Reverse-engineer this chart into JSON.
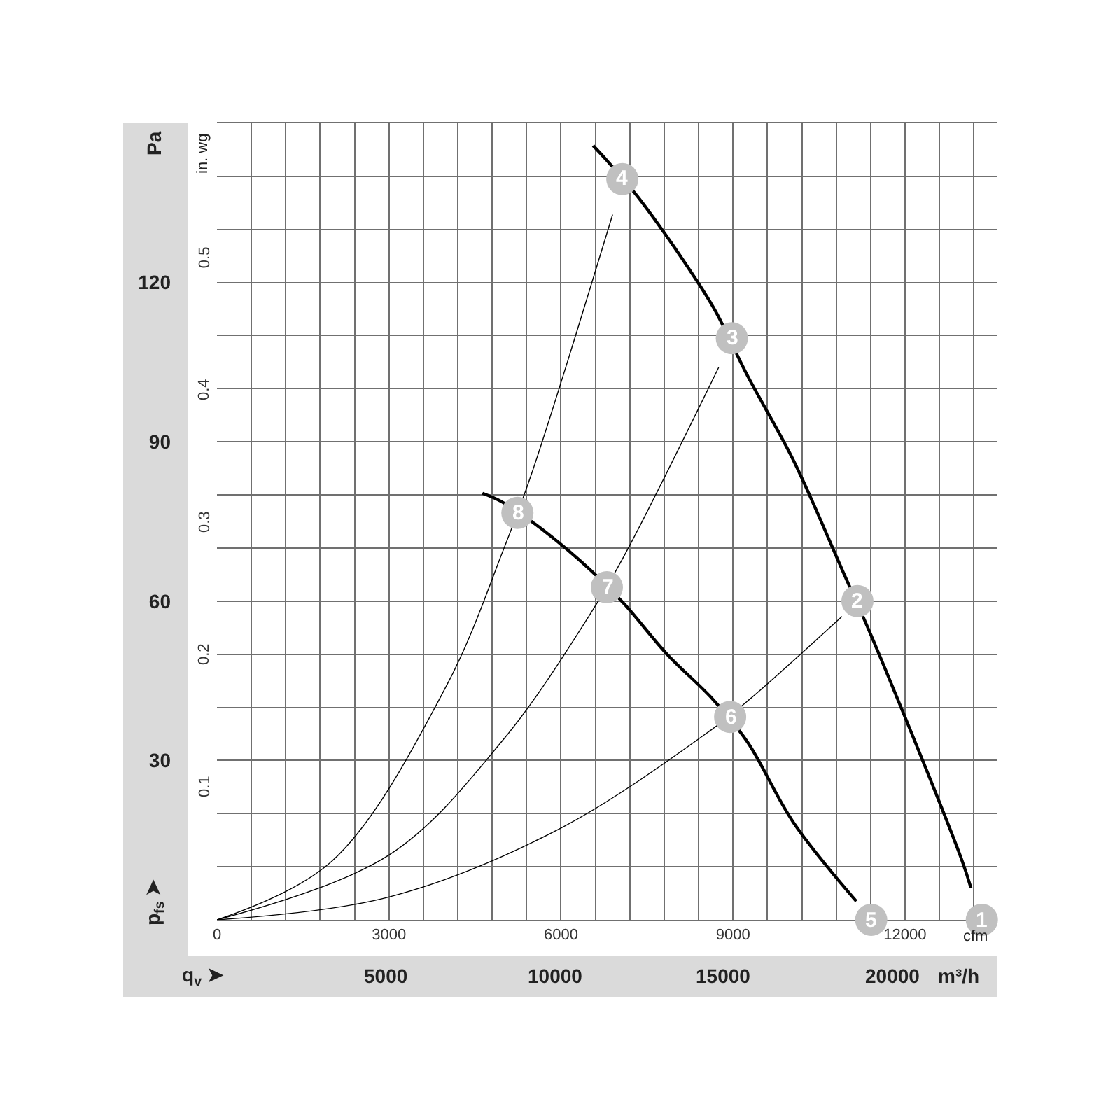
{
  "chart_data": {
    "type": "line",
    "xlabel": "cfm",
    "x2label": "m³/h",
    "ylabel": "Pa",
    "y2label": "in. wg",
    "annotations": [
      "p$_{fs}$ ➤",
      "q$_{v}$ ➤",
      {
        "text": "1",
        "x": 13340,
        "y": 0
      },
      {
        "text": "2",
        "x": 11170,
        "y": 60
      },
      {
        "text": "3",
        "x": 8980,
        "y": 109.5
      },
      {
        "text": "4",
        "x": 7070,
        "y": 139.5
      },
      {
        "text": "5",
        "x": 11410,
        "y": 0
      },
      {
        "text": "6",
        "x": 8950,
        "y": 38.2
      },
      {
        "text": "7",
        "x": 6800,
        "y": 62.6
      },
      {
        "text": "8",
        "x": 5240,
        "y": 76.6
      }
    ],
    "xlim": [
      0,
      13600
    ],
    "xticks": [
      0,
      {
        "value": 600,
        "label": null
      },
      {
        "value": 1200,
        "label": null
      },
      {
        "value": 1800,
        "label": null
      },
      {
        "value": 2400,
        "label": null
      },
      3000,
      {
        "value": 3600,
        "label": null
      },
      {
        "value": 4200,
        "label": null
      },
      {
        "value": 4800,
        "label": null
      },
      {
        "value": 5400,
        "label": null
      },
      6000,
      {
        "value": 6600,
        "label": null
      },
      {
        "value": 7200,
        "label": null
      },
      {
        "value": 7800,
        "label": null
      },
      {
        "value": 8400,
        "label": null
      },
      9000,
      {
        "value": 9600,
        "label": null
      },
      {
        "value": 10200,
        "label": null
      },
      {
        "value": 10800,
        "label": null
      },
      {
        "value": 11400,
        "label": null
      },
      12000,
      {
        "value": 12600,
        "label": null
      },
      {
        "value": 13200,
        "label": null
      }
    ],
    "x2lim": [
      0,
      23100
    ],
    "x2ticks": [
      5000,
      10000,
      15000,
      20000
    ],
    "ylim": [
      0,
      150
    ],
    "yticks": [
      {
        "value": 10,
        "label": null
      },
      {
        "value": 20,
        "label": null
      },
      30,
      {
        "value": 40,
        "label": null
      },
      {
        "value": 50,
        "label": null
      },
      60,
      {
        "value": 70,
        "label": null
      },
      {
        "value": 80,
        "label": null
      },
      90,
      {
        "value": 100,
        "label": null
      },
      {
        "value": 110,
        "label": null
      },
      120,
      {
        "value": 130,
        "label": null
      },
      {
        "value": 140,
        "label": null
      }
    ],
    "y2lim": [
      0,
      0.6022
    ],
    "y2ticks": [
      0.1,
      0.2,
      0.3,
      0.4,
      0.5
    ],
    "grid": true,
    "line_style": "solid",
    "series": [
      {
        "color": "#000000",
        "x": [
          6560,
          6800,
          7350,
          8340,
          8700,
          9250,
          10050,
          10900,
          11450,
          12980,
          13150
        ],
        "values": [
          145.8,
          143,
          136,
          120.8,
          114.5,
          102.5,
          86.6,
          66,
          52.5,
          11.6,
          6
        ]
      },
      {
        "color": "#000000",
        "x": [
          4630,
          4950,
          5550,
          6500,
          7100,
          7850,
          8650,
          9250,
          10050,
          11150
        ],
        "values": [
          80.3,
          78.8,
          74.5,
          66,
          59.5,
          50,
          41.5,
          33.5,
          18.4,
          3.5
        ]
      },
      {
        "color": "#000000",
        "x": [
          0,
          3000,
          6000,
          8600,
          9300,
          10900
        ],
        "values": [
          0,
          4.3,
          17.3,
          35.6,
          41.6,
          57.1
        ]
      },
      {
        "color": "#000000",
        "x": [
          0,
          3000,
          5000,
          6500,
          7100,
          8750
        ],
        "values": [
          0,
          12.2,
          34,
          57.4,
          68.5,
          104
        ]
      },
      {
        "color": "#000000",
        "x": [
          0,
          2000,
          4000,
          5000,
          5500,
          6900
        ],
        "values": [
          0,
          11,
          44,
          69.8,
          84.4,
          132.8
        ]
      },
      {
        "type": "scatter",
        "marker": "circle",
        "color": "#c0c0c0",
        "x": [
          13340,
          11170,
          8980,
          7070,
          11410,
          8950,
          6800,
          5240
        ],
        "values": [
          0,
          60,
          109.5,
          139.5,
          0,
          38.2,
          62.6,
          76.6
        ]
      }
    ]
  }
}
